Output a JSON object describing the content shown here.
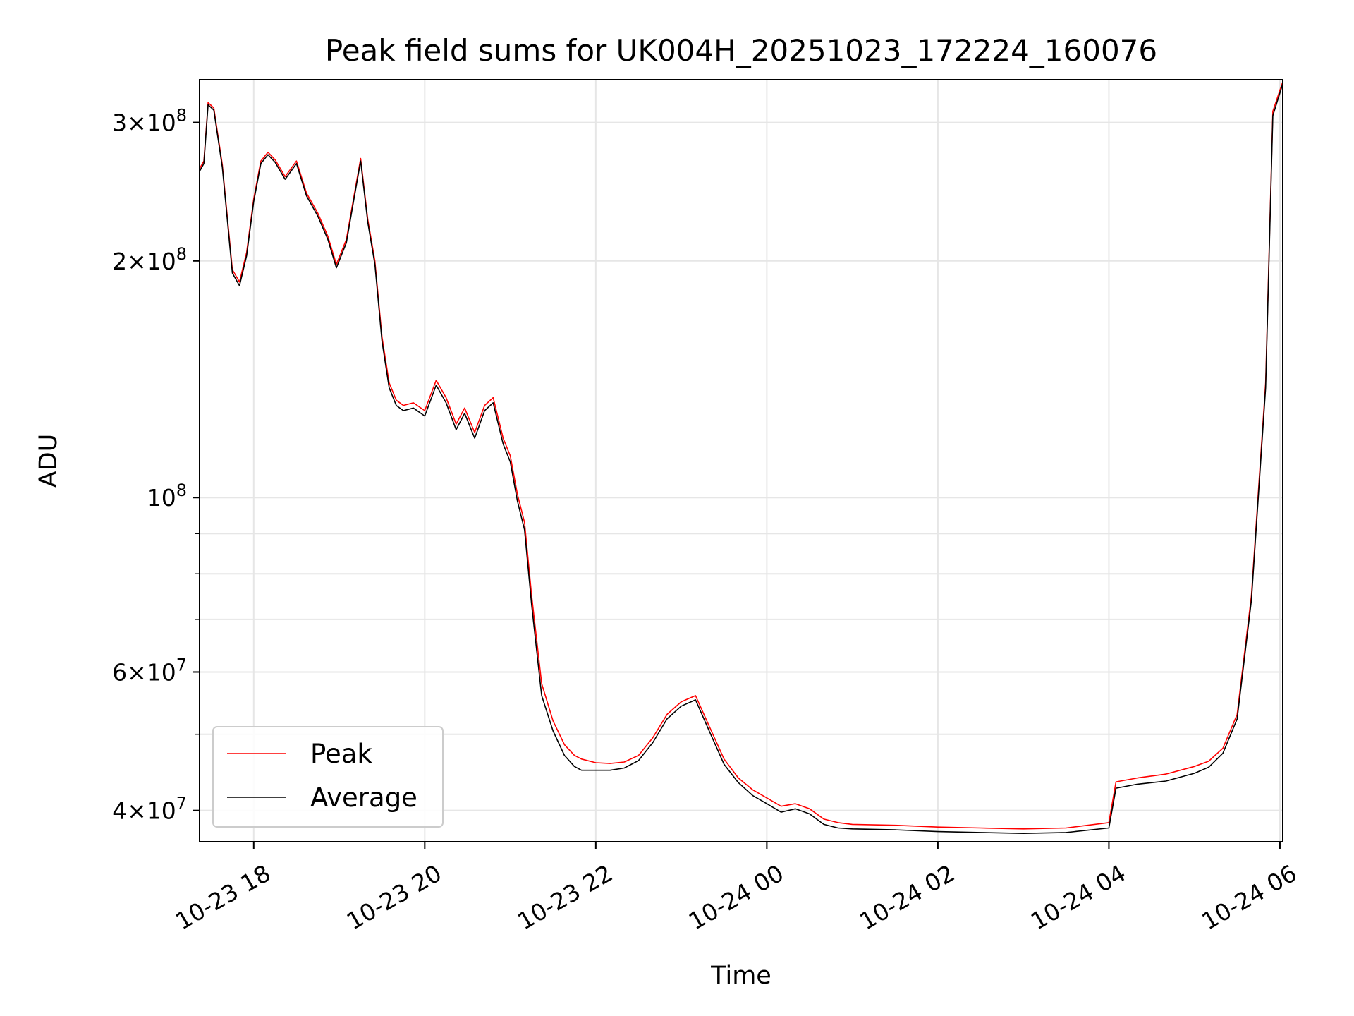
{
  "chart_data": {
    "type": "line",
    "title": "Peak field sums for UK004H_20251023_172224_160076",
    "xlabel": "Time",
    "ylabel": "ADU",
    "x_range": [
      "2025-10-23 17:22",
      "2025-10-24 06:02"
    ],
    "ylim": [
      36500000,
      340000000
    ],
    "y_scale": "log",
    "grid": true,
    "legend_position": "lower-left",
    "x_ticks": [
      {
        "t": "2025-10-23 18:00",
        "label": "10-23 18"
      },
      {
        "t": "2025-10-23 20:00",
        "label": "10-23 20"
      },
      {
        "t": "2025-10-23 22:00",
        "label": "10-23 22"
      },
      {
        "t": "2025-10-24 00:00",
        "label": "10-24 00"
      },
      {
        "t": "2025-10-24 02:00",
        "label": "10-24 02"
      },
      {
        "t": "2025-10-24 04:00",
        "label": "10-24 04"
      },
      {
        "t": "2025-10-24 06:00",
        "label": "10-24 06"
      }
    ],
    "y_major_ticks": [
      {
        "value": 40000000,
        "mant": "4",
        "exp": "7"
      },
      {
        "value": 60000000,
        "mant": "6",
        "exp": "7"
      },
      {
        "value": 100000000,
        "mant": "",
        "exp": "8"
      },
      {
        "value": 200000000,
        "mant": "2",
        "exp": "8"
      },
      {
        "value": 300000000,
        "mant": "3",
        "exp": "8"
      }
    ],
    "y_minor_gridlines": [
      50000000,
      70000000,
      80000000,
      90000000
    ],
    "series": [
      {
        "name": "Peak",
        "color": "#ff0000",
        "x": [
          "2025-10-23 17:22",
          "2025-10-23 17:25",
          "2025-10-23 17:28",
          "2025-10-23 17:32",
          "2025-10-23 17:38",
          "2025-10-23 17:45",
          "2025-10-23 17:50",
          "2025-10-23 17:55",
          "2025-10-23 18:00",
          "2025-10-23 18:05",
          "2025-10-23 18:10",
          "2025-10-23 18:15",
          "2025-10-23 18:22",
          "2025-10-23 18:30",
          "2025-10-23 18:37",
          "2025-10-23 18:45",
          "2025-10-23 18:52",
          "2025-10-23 18:58",
          "2025-10-23 19:05",
          "2025-10-23 19:10",
          "2025-10-23 19:15",
          "2025-10-23 19:20",
          "2025-10-23 19:25",
          "2025-10-23 19:30",
          "2025-10-23 19:35",
          "2025-10-23 19:40",
          "2025-10-23 19:45",
          "2025-10-23 19:52",
          "2025-10-23 20:00",
          "2025-10-23 20:08",
          "2025-10-23 20:15",
          "2025-10-23 20:22",
          "2025-10-23 20:28",
          "2025-10-23 20:35",
          "2025-10-23 20:42",
          "2025-10-23 20:48",
          "2025-10-23 20:55",
          "2025-10-23 21:00",
          "2025-10-23 21:05",
          "2025-10-23 21:10",
          "2025-10-23 21:15",
          "2025-10-23 21:22",
          "2025-10-23 21:30",
          "2025-10-23 21:38",
          "2025-10-23 21:45",
          "2025-10-23 21:50",
          "2025-10-23 22:00",
          "2025-10-23 22:10",
          "2025-10-23 22:20",
          "2025-10-23 22:30",
          "2025-10-23 22:40",
          "2025-10-23 22:50",
          "2025-10-23 23:00",
          "2025-10-23 23:10",
          "2025-10-23 23:20",
          "2025-10-23 23:30",
          "2025-10-23 23:40",
          "2025-10-23 23:50",
          "2025-10-24 00:00",
          "2025-10-24 00:10",
          "2025-10-24 00:20",
          "2025-10-24 00:30",
          "2025-10-24 00:40",
          "2025-10-24 00:50",
          "2025-10-24 01:00",
          "2025-10-24 01:30",
          "2025-10-24 02:00",
          "2025-10-24 02:30",
          "2025-10-24 03:00",
          "2025-10-24 03:30",
          "2025-10-24 04:00",
          "2025-10-24 04:05",
          "2025-10-24 04:20",
          "2025-10-24 04:40",
          "2025-10-24 05:00",
          "2025-10-24 05:10",
          "2025-10-24 05:20",
          "2025-10-24 05:30",
          "2025-10-24 05:40",
          "2025-10-24 05:50",
          "2025-10-24 05:55",
          "2025-10-24 06:02"
        ],
        "y": [
          262000000,
          268000000,
          318000000,
          313000000,
          265000000,
          195000000,
          188000000,
          205000000,
          240000000,
          268000000,
          275000000,
          269000000,
          256000000,
          268000000,
          244000000,
          230000000,
          215000000,
          198000000,
          213000000,
          240000000,
          270000000,
          226000000,
          200000000,
          160000000,
          140000000,
          133000000,
          131000000,
          132000000,
          129000000,
          141000000,
          134000000,
          124000000,
          130000000,
          121000000,
          131000000,
          134000000,
          119000000,
          113000000,
          101000000,
          93000000,
          75000000,
          58000000,
          52000000,
          48500000,
          47000000,
          46500000,
          46000000,
          45900000,
          46100000,
          47000000,
          49500000,
          53000000,
          55000000,
          56000000,
          51000000,
          46500000,
          44000000,
          42500000,
          41500000,
          40500000,
          40800000,
          40200000,
          39000000,
          38600000,
          38400000,
          38300000,
          38100000,
          38000000,
          37900000,
          38000000,
          38600000,
          43500000,
          44000000,
          44500000,
          45500000,
          46200000,
          48000000,
          53000000,
          75000000,
          140000000,
          310000000,
          338000000
        ]
      },
      {
        "name": "Average",
        "color": "#000000",
        "x": [
          "2025-10-23 17:22",
          "2025-10-23 17:25",
          "2025-10-23 17:28",
          "2025-10-23 17:32",
          "2025-10-23 17:38",
          "2025-10-23 17:45",
          "2025-10-23 17:50",
          "2025-10-23 17:55",
          "2025-10-23 18:00",
          "2025-10-23 18:05",
          "2025-10-23 18:10",
          "2025-10-23 18:15",
          "2025-10-23 18:22",
          "2025-10-23 18:30",
          "2025-10-23 18:37",
          "2025-10-23 18:45",
          "2025-10-23 18:52",
          "2025-10-23 18:58",
          "2025-10-23 19:05",
          "2025-10-23 19:10",
          "2025-10-23 19:15",
          "2025-10-23 19:20",
          "2025-10-23 19:25",
          "2025-10-23 19:30",
          "2025-10-23 19:35",
          "2025-10-23 19:40",
          "2025-10-23 19:45",
          "2025-10-23 19:52",
          "2025-10-23 20:00",
          "2025-10-23 20:08",
          "2025-10-23 20:15",
          "2025-10-23 20:22",
          "2025-10-23 20:28",
          "2025-10-23 20:35",
          "2025-10-23 20:42",
          "2025-10-23 20:48",
          "2025-10-23 20:55",
          "2025-10-23 21:00",
          "2025-10-23 21:05",
          "2025-10-23 21:10",
          "2025-10-23 21:15",
          "2025-10-23 21:22",
          "2025-10-23 21:30",
          "2025-10-23 21:38",
          "2025-10-23 21:45",
          "2025-10-23 21:50",
          "2025-10-23 22:00",
          "2025-10-23 22:10",
          "2025-10-23 22:20",
          "2025-10-23 22:30",
          "2025-10-23 22:40",
          "2025-10-23 22:50",
          "2025-10-23 23:00",
          "2025-10-23 23:10",
          "2025-10-23 23:20",
          "2025-10-23 23:30",
          "2025-10-23 23:40",
          "2025-10-23 23:50",
          "2025-10-24 00:00",
          "2025-10-24 00:10",
          "2025-10-24 00:20",
          "2025-10-24 00:30",
          "2025-10-24 00:40",
          "2025-10-24 00:50",
          "2025-10-24 01:00",
          "2025-10-24 01:30",
          "2025-10-24 02:00",
          "2025-10-24 02:30",
          "2025-10-24 03:00",
          "2025-10-24 03:30",
          "2025-10-24 04:00",
          "2025-10-24 04:05",
          "2025-10-24 04:20",
          "2025-10-24 04:40",
          "2025-10-24 05:00",
          "2025-10-24 05:10",
          "2025-10-24 05:20",
          "2025-10-24 05:30",
          "2025-10-24 05:40",
          "2025-10-24 05:50",
          "2025-10-24 05:55",
          "2025-10-24 06:02"
        ],
        "y": [
          260000000,
          266000000,
          316000000,
          311000000,
          263000000,
          193000000,
          186000000,
          203000000,
          238000000,
          266000000,
          273000000,
          267000000,
          254000000,
          266000000,
          242000000,
          228000000,
          213000000,
          196000000,
          211000000,
          238000000,
          268000000,
          224000000,
          198000000,
          158000000,
          138000000,
          131000000,
          129000000,
          130000000,
          127000000,
          139000000,
          132000000,
          122000000,
          128000000,
          119000000,
          129000000,
          132000000,
          117000000,
          111000000,
          99000000,
          91000000,
          73000000,
          56000000,
          50500000,
          47000000,
          45500000,
          45000000,
          45000000,
          45000000,
          45300000,
          46300000,
          48800000,
          52300000,
          54300000,
          55300000,
          50300000,
          45800000,
          43400000,
          41800000,
          40800000,
          39800000,
          40200000,
          39600000,
          38400000,
          38000000,
          37900000,
          37800000,
          37600000,
          37500000,
          37400000,
          37500000,
          38000000,
          42700000,
          43200000,
          43600000,
          44600000,
          45400000,
          47300000,
          52300000,
          74000000,
          138000000,
          306000000,
          336000000
        ]
      }
    ]
  }
}
